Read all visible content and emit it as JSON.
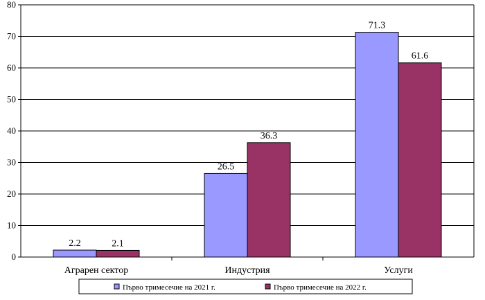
{
  "chart_data": {
    "type": "bar",
    "title": "",
    "xlabel": "",
    "ylabel": "",
    "categories": [
      "Аграрен сектор",
      "Индустрия",
      "Услуги"
    ],
    "series": [
      {
        "name": "Първо тримесечие на 2021 г.",
        "color": "#9999ff",
        "values": [
          2.2,
          26.5,
          71.3
        ],
        "labels": [
          "2.2",
          "26.5",
          "71.3"
        ]
      },
      {
        "name": "Първо тримесечие на 2022 г.",
        "color": "#993366",
        "values": [
          2.1,
          36.3,
          61.6
        ],
        "labels": [
          "2.1",
          "36.3",
          "61.6"
        ]
      }
    ],
    "ylim": [
      0,
      80
    ],
    "yticks": [
      "0",
      "10",
      "20",
      "30",
      "40",
      "50",
      "60",
      "70",
      "80"
    ],
    "grid": true,
    "legend_position": "bottom"
  }
}
